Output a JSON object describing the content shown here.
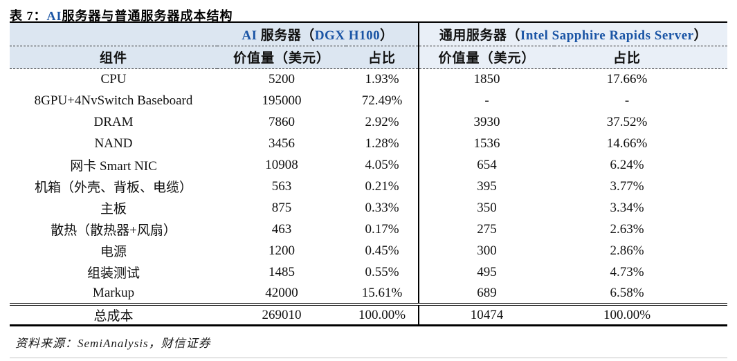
{
  "title": {
    "prefix": "表 7：",
    "ai": "AI",
    "rest": "服务器与普通服务器成本结构"
  },
  "table": {
    "group_left": {
      "seg1": "AI",
      "seg2": " 服务器（",
      "seg3": "DGX H100",
      "seg4": "）"
    },
    "group_right": {
      "seg1": "通用服务器（",
      "seg2": "Intel Sapphire Rapids Server",
      "seg3": "）"
    },
    "col_headers": {
      "component": "组件",
      "value_left": "价值量（美元）",
      "share_left": "占比",
      "value_right": "价值量（美元）",
      "share_right": "占比"
    },
    "rows": [
      {
        "component": "CPU",
        "ai_value": "5200",
        "ai_share": "1.93%",
        "gp_value": "1850",
        "gp_share": "17.66%"
      },
      {
        "component": "8GPU+4NvSwitch Baseboard",
        "ai_value": "195000",
        "ai_share": "72.49%",
        "gp_value": "-",
        "gp_share": "-"
      },
      {
        "component": "DRAM",
        "ai_value": "7860",
        "ai_share": "2.92%",
        "gp_value": "3930",
        "gp_share": "37.52%"
      },
      {
        "component": "NAND",
        "ai_value": "3456",
        "ai_share": "1.28%",
        "gp_value": "1536",
        "gp_share": "14.66%"
      },
      {
        "component": "网卡 Smart NIC",
        "ai_value": "10908",
        "ai_share": "4.05%",
        "gp_value": "654",
        "gp_share": "6.24%"
      },
      {
        "component": "机箱（外壳、背板、电缆）",
        "ai_value": "563",
        "ai_share": "0.21%",
        "gp_value": "395",
        "gp_share": "3.77%"
      },
      {
        "component": "主板",
        "ai_value": "875",
        "ai_share": "0.33%",
        "gp_value": "350",
        "gp_share": "3.34%"
      },
      {
        "component": "散热（散热器+风扇）",
        "ai_value": "463",
        "ai_share": "0.17%",
        "gp_value": "275",
        "gp_share": "2.63%"
      },
      {
        "component": "电源",
        "ai_value": "1200",
        "ai_share": "0.45%",
        "gp_value": "300",
        "gp_share": "2.86%"
      },
      {
        "component": "组装测试",
        "ai_value": "1485",
        "ai_share": "0.55%",
        "gp_value": "495",
        "gp_share": "4.73%"
      },
      {
        "component": "Markup",
        "ai_value": "42000",
        "ai_share": "15.61%",
        "gp_value": "689",
        "gp_share": "6.58%"
      }
    ],
    "total_row": {
      "component": "总成本",
      "ai_value": "269010",
      "ai_share": "100.00%",
      "gp_value": "10474",
      "gp_share": "100.00%"
    }
  },
  "footer": {
    "source": "资料来源：SemiAnalysis，财信证券"
  },
  "colors": {
    "header_bg_left": "#dce6f1",
    "header_bg_right": "#e9eff7",
    "accent_blue": "#1b55a5",
    "bottom_rule_grey": "#c4c4c4"
  }
}
